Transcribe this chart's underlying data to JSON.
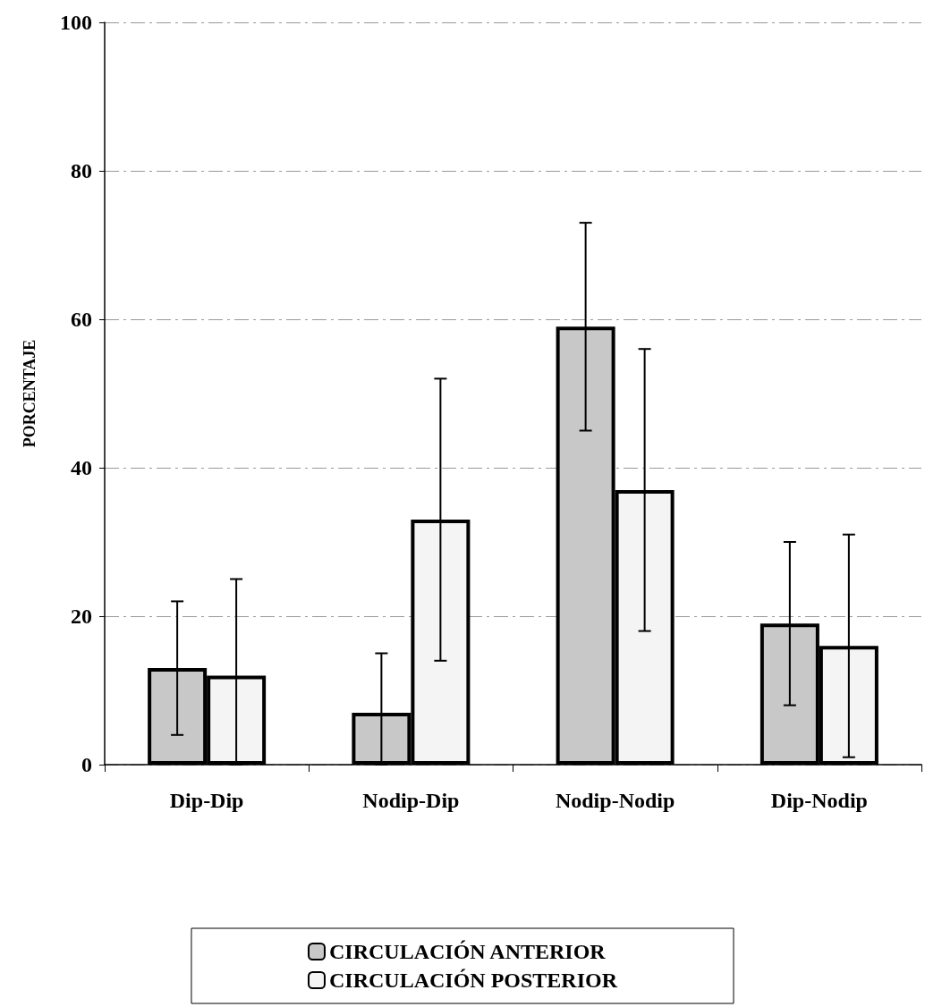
{
  "chart_data": {
    "type": "bar",
    "ylabel": "PORCENTAJE",
    "categories": [
      "Dip-Dip",
      "Nodip-Dip",
      "Nodip-Nodip",
      "Dip-Nodip"
    ],
    "series": [
      {
        "name": "CIRCULACIÓN ANTERIOR",
        "color": "#c8c8c8",
        "values": [
          13,
          7,
          59,
          19
        ],
        "errors": [
          [
            4,
            22
          ],
          [
            0,
            15
          ],
          [
            45,
            73
          ],
          [
            8,
            30
          ]
        ]
      },
      {
        "name": "CIRCULACIÓN POSTERIOR",
        "color": "#f4f4f4",
        "values": [
          12,
          33,
          37,
          16
        ],
        "errors": [
          [
            0,
            25
          ],
          [
            14,
            52
          ],
          [
            18,
            56
          ],
          [
            1,
            31
          ]
        ]
      }
    ],
    "ylim": [
      0,
      100
    ],
    "yticks": [
      0,
      20,
      40,
      60,
      80,
      100
    ],
    "grid": "y",
    "legend": "bottom"
  }
}
